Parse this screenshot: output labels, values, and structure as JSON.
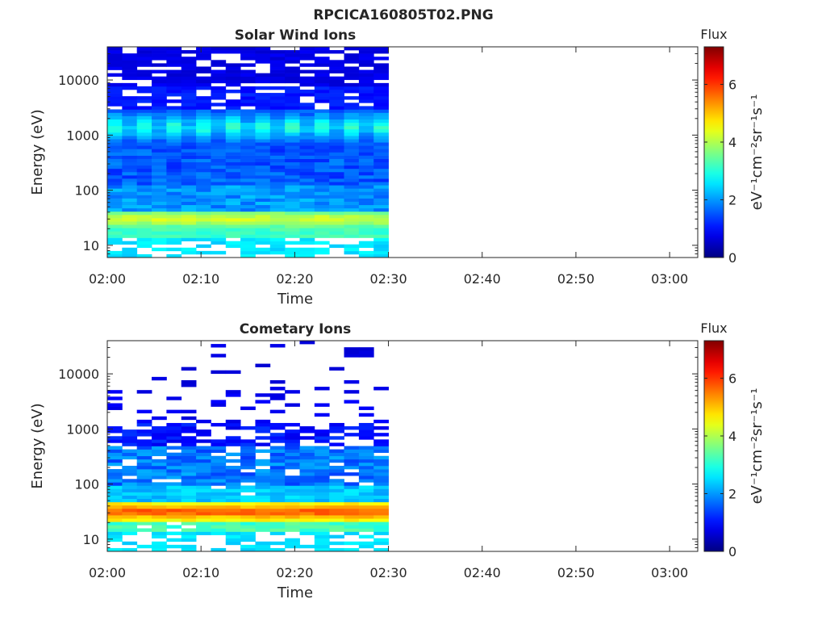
{
  "figure_title": "RPCICA160805T02.PNG",
  "chart_data": [
    {
      "type": "heatmap",
      "title": "Solar Wind Ions",
      "xlabel": "Time",
      "ylabel": "Energy (eV)",
      "x_ticks": [
        "02:00",
        "02:10",
        "02:20",
        "02:30",
        "02:40",
        "02:50",
        "03:00"
      ],
      "x_range": [
        "02:00",
        "03:03"
      ],
      "data_time_range": [
        "02:00",
        "02:30"
      ],
      "y_scale": "log",
      "y_ticks": [
        10,
        100,
        1000,
        10000
      ],
      "y_tick_labels": [
        "10",
        "100",
        "1000",
        "10000"
      ],
      "y_range": [
        6,
        40000
      ],
      "colorbar": {
        "title": "Flux",
        "label": "eV⁻¹cm⁻²sr⁻¹s⁻¹",
        "range": [
          0,
          7.3
        ],
        "ticks": [
          0,
          2,
          4,
          6
        ],
        "colormap": "jet"
      }
    },
    {
      "type": "heatmap",
      "title": "Cometary Ions",
      "xlabel": "Time",
      "ylabel": "Energy (eV)",
      "x_ticks": [
        "02:00",
        "02:10",
        "02:20",
        "02:30",
        "02:40",
        "02:50",
        "03:00"
      ],
      "x_range": [
        "02:00",
        "03:03"
      ],
      "data_time_range": [
        "02:00",
        "02:30"
      ],
      "y_scale": "log",
      "y_ticks": [
        10,
        100,
        1000,
        10000
      ],
      "y_tick_labels": [
        "10",
        "100",
        "1000",
        "10000"
      ],
      "y_range": [
        6,
        40000
      ],
      "colorbar": {
        "title": "Flux",
        "label": "eV⁻¹cm⁻²sr⁻¹s⁻¹",
        "range": [
          0,
          7.3
        ],
        "ticks": [
          0,
          2,
          4,
          6
        ],
        "colormap": "jet"
      }
    }
  ]
}
